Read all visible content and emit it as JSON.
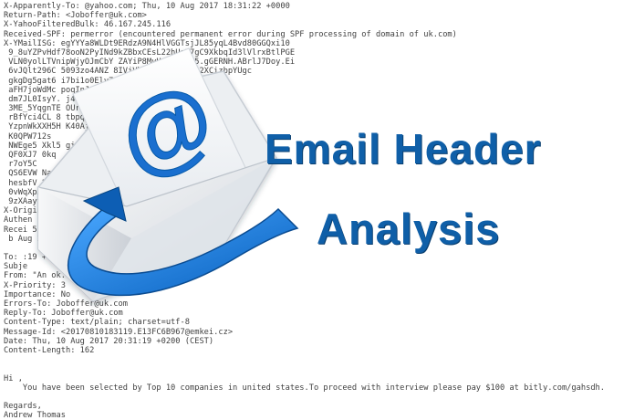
{
  "header_lines": [
    "X-Apparently-To: @yahoo.com; Thu, 10 Aug 2017 18:31:22 +0000",
    "Return-Path: <Joboffer@uk.com>",
    "X-YahooFilteredBulk: 46.167.245.116",
    "Received-SPF: permerror (encountered permanent error during SPF processing of domain of uk.com)",
    "X-YMailISG: egYYYa8WLDt9ERdzA9N4HlVGGTsjJL85yqL4Bvd80GGQxi10",
    " 9_8uYZPvHdf78ooN2PyINd9kZBbxCEsL22hUq27gC9XkbqId3lVlrxBtlPGE",
    " VLN0yolLTVnipWjyOJmCbY ZAYiP8MyHd.1XEhm5.gGERNH.ABrlJ7Doy.Ei",
    " 6vJQlt296C 5093zo4ANZ 8IVjVhTV2sfhLOEmDn2XCizbpYUgc",
    " gkgDg5gat6 i7bi1o0Elv7ekZsboVQ9LwyBR",
    " aFH7joWdMc poqInJCdOl6nQBlSO2n",
    " dm7JL0IsyY. j4fAcfelzraA0kIWZI",
    " 3ME_5YqgnTE OUr3ZWZ4iC_3b8vjYu",
    " rBfYci4CL 8 tbpqaIcOQCZ",
    " YzpnWkXXH5H K40Ajy",
    " K0QPW712s",
    " NWEge5 Xkl5 gi",
    " QF0XJ7 0kq",
    " r7oY5C",
    " QS6EVW Nac NdMIDLBZ",
    " hesbfV 2Wr071J6Nx",
    " 0vWqXpJ Dz1kG4XLWD2",
    " 9zXAayv mesSEvHX9q",
    "X-Origin",
    "Authen from=uk.com; dom ; dkim=neutral (no sig)",
    "Recei 5.116)",
    " b Aug 2017 18:31",
    "",
    "To: :19 +0200 (CEST)",
    "Subje",
    "From: \"An ok.com>",
    "X-Priority: 3",
    "Importance: No",
    "Errors-To: Joboffer@uk.com",
    "Reply-To: Joboffer@uk.com",
    "Content-Type: text/plain; charset=utf-8",
    "Message-Id: <20170810183119.E13FC6B967@emkei.cz>",
    "Date: Thu, 10 Aug 2017 20:31:19 +0200 (CEST)",
    "Content-Length: 162",
    "",
    "",
    "Hi ,",
    "    You have been selected by Top 10 companies in united states.To proceed with interview please pay $100 at bitly.com/gahsdh.",
    "",
    "Regards,",
    "Andrew Thomas"
  ],
  "title": {
    "line1": "Email Header",
    "line2": "Analysis"
  },
  "logo_symbol": "@",
  "icon_names": [
    "envelope-icon",
    "at-sign-icon",
    "arrow-icon"
  ],
  "colors": {
    "title_blue": "#0f5fa8",
    "arrow_blue": "#1677d6",
    "header_text": "#3f3f3f"
  }
}
